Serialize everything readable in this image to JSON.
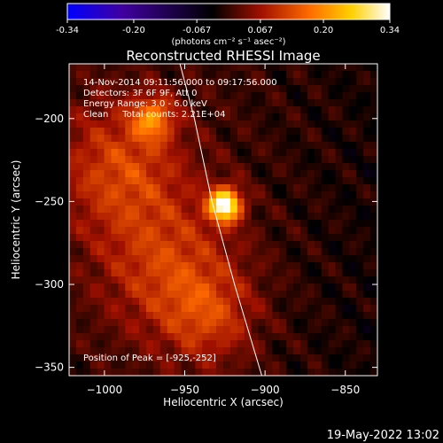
{
  "chart_data": {
    "type": "heatmap",
    "title": "Reconstructed RHESSI Image",
    "xlabel": "Heliocentric X (arcsec)",
    "ylabel": "Heliocentric Y (arcsec)",
    "xlim": [
      -1022,
      -830
    ],
    "ylim": [
      -355,
      -167
    ],
    "xticks": [
      -1000,
      -950,
      -900,
      -850
    ],
    "yticks": [
      -200,
      -250,
      -300,
      -350
    ],
    "grid": false,
    "colorbar": {
      "range": [
        -0.34,
        0.34
      ],
      "ticks": [
        "-0.34",
        "-0.20",
        "-0.067",
        "0.067",
        "0.20",
        "0.34"
      ],
      "unit_label": "(photons cm⁻² s⁻¹ asec⁻²)",
      "colormap": [
        "#0000ff",
        "#4000a0",
        "#000000",
        "#a01000",
        "#ff6a00",
        "#ffd000",
        "#ffffff"
      ]
    },
    "info_lines": [
      "14-Nov-2014 09:11:56.000 to 09:17:56.000",
      "Detectors: 3F 6F 9F, Att 0",
      "Energy Range: 3.0 - 6.0 keV",
      "Clean     Total counts: 2.21E+04"
    ],
    "peak_label": "Position of Peak = [-925,-252]",
    "peak": {
      "x": -925,
      "y": -252
    },
    "limb": [
      [
        -953,
        -167
      ],
      [
        -944,
        -200
      ],
      [
        -933,
        -250
      ],
      [
        -919,
        -300
      ],
      [
        -902,
        -355
      ]
    ],
    "sources": [
      {
        "x": -925,
        "y": -252,
        "amp": 0.34,
        "sigma": 7
      },
      {
        "x": -970,
        "y": -200,
        "amp": 0.16,
        "sigma": 9
      },
      {
        "x": -990,
        "y": -230,
        "amp": 0.12,
        "sigma": 28
      },
      {
        "x": -960,
        "y": -290,
        "amp": 0.11,
        "sigma": 30
      },
      {
        "x": -935,
        "y": -320,
        "amp": 0.09,
        "sigma": 20
      }
    ]
  },
  "footer": {
    "timestamp": "19-May-2022 13:02"
  }
}
